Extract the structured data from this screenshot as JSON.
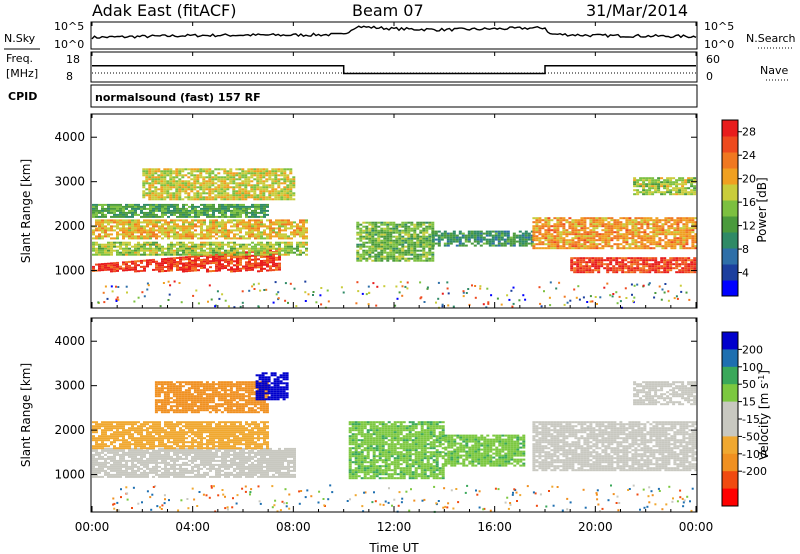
{
  "header": {
    "radar": "Adak East (fitACF)",
    "beam": "Beam 07",
    "date": "31/Mar/2014"
  },
  "panels": {
    "nsky": {
      "label": "N.Sky",
      "ticks": [
        "10^5",
        "10^0"
      ],
      "right_label": "N.Search",
      "right_ticks": [
        "10^5",
        "10^0"
      ]
    },
    "freq": {
      "label_line1": "Freq.",
      "label_line2": "[MHz]",
      "ticks": [
        "18",
        "8"
      ],
      "right_label": "Nave",
      "right_ticks": [
        "60",
        "0"
      ]
    },
    "cpid": {
      "label": "CPID",
      "program": "normalsound (fast) 157 RF"
    },
    "power": {
      "ylabel": "Slant Range [km]",
      "cbar_label": "Power [dB]"
    },
    "velocity": {
      "ylabel": "Slant Range [km]",
      "cbar_label": "Velocity [m s",
      "cbar_exp": "-1",
      "cbar_close": "]"
    }
  },
  "xaxis": {
    "label": "Time UT",
    "ticks": [
      "00:00",
      "04:00",
      "08:00",
      "12:00",
      "16:00",
      "20:00",
      "00:00"
    ]
  },
  "colors": {
    "power": [
      "#0000ff",
      "#1c3f9e",
      "#2e6fa8",
      "#2f8a66",
      "#4a9a3c",
      "#7cc040",
      "#c9cc3a",
      "#f0a020",
      "#f07820",
      "#ee4a1e",
      "#e81c1c"
    ],
    "velocity_neg": [
      "#ff0000",
      "#f04a10",
      "#f09020",
      "#f0a830"
    ],
    "velocity_zero": "#c8c8c0",
    "velocity_pos": [
      "#7cc840",
      "#3aa85a",
      "#1e6fb0",
      "#0000cc"
    ]
  },
  "chart_data": [
    {
      "type": "line",
      "title": "N.Sky / N.Search",
      "x_hours": [
        0,
        2,
        4,
        6,
        8,
        10,
        10.5,
        12,
        14,
        16,
        18,
        18.2,
        20,
        22,
        24
      ],
      "series": [
        {
          "values_log10": [
            2.2,
            2.4,
            2.6,
            2.7,
            2.7,
            2.8,
            4.5,
            4.0,
            3.8,
            4.0,
            4.2,
            2.9,
            2.6,
            2.5,
            2.4
          ]
        }
      ],
      "ylim_log10": [
        0,
        5
      ]
    },
    {
      "type": "line",
      "title": "Freq. [MHz]",
      "x_hours": [
        0,
        10,
        10,
        18,
        18,
        24
      ],
      "series": [
        {
          "values": [
            13.5,
            13.5,
            10.5,
            10.5,
            13.5,
            13.5
          ]
        }
      ],
      "ylim": [
        8,
        18
      ]
    },
    {
      "type": "heatmap",
      "title": "Power [dB]",
      "xlabel": "Time UT",
      "ylabel": "Slant Range [km]",
      "xlim_hours": [
        0,
        24
      ],
      "ylim_km": [
        180,
        4500
      ],
      "y_ticks": [
        1000,
        2000,
        3000,
        4000
      ],
      "colorbar_ticks": [
        4,
        8,
        12,
        16,
        20,
        24,
        28
      ],
      "colorbar_range": [
        0,
        30
      ],
      "bands": [
        {
          "t0": 0,
          "t1": 7.5,
          "r0": 1000,
          "r1": 1150,
          "r1_end": 1500,
          "power": 28
        },
        {
          "t0": 0,
          "t1": 8.5,
          "r0": 1350,
          "r1": 1650,
          "power": 16
        },
        {
          "t0": 0,
          "t1": 8.5,
          "r0": 1700,
          "r1": 2150,
          "power": 20
        },
        {
          "t0": 0,
          "t1": 7.0,
          "r0": 2200,
          "r1": 2500,
          "power": 12
        },
        {
          "t0": 2,
          "t1": 8.0,
          "r0": 2600,
          "r1": 3300,
          "power": 18
        },
        {
          "t0": 10.5,
          "t1": 13.5,
          "r0": 1200,
          "r1": 2100,
          "power": 14
        },
        {
          "t0": 13.5,
          "t1": 17.5,
          "r0": 1550,
          "r1": 1900,
          "power": 10
        },
        {
          "t0": 17.5,
          "t1": 24,
          "r0": 1500,
          "r1": 2200,
          "power": 22
        },
        {
          "t0": 19,
          "t1": 24,
          "r0": 950,
          "r1": 1300,
          "power": 28
        },
        {
          "t0": 21.5,
          "t1": 24,
          "r0": 2700,
          "r1": 3100,
          "power": 16
        }
      ]
    },
    {
      "type": "heatmap",
      "title": "Velocity [m s-1]",
      "xlabel": "Time UT",
      "ylabel": "Slant Range [km]",
      "xlim_hours": [
        0,
        24
      ],
      "ylim_km": [
        180,
        4500
      ],
      "y_ticks": [
        1000,
        2000,
        3000,
        4000
      ],
      "colorbar_ticks": [
        200,
        100,
        50,
        15,
        -15,
        -50,
        -100,
        -200
      ],
      "bands": [
        {
          "t0": 0,
          "t1": 8.0,
          "r0": 950,
          "r1": 1600,
          "velocity": 0
        },
        {
          "t0": 0,
          "t1": 7.0,
          "r0": 1600,
          "r1": 2200,
          "velocity": -30
        },
        {
          "t0": 2.5,
          "t1": 7.0,
          "r0": 2400,
          "r1": 3100,
          "velocity": -70
        },
        {
          "t0": 6.5,
          "t1": 7.8,
          "r0": 2700,
          "r1": 3300,
          "velocity": 200
        },
        {
          "t0": 10.2,
          "t1": 14.0,
          "r0": 900,
          "r1": 2200,
          "velocity": 40
        },
        {
          "t0": 14.0,
          "t1": 17.2,
          "r0": 1200,
          "r1": 1900,
          "velocity": 40
        },
        {
          "t0": 17.5,
          "t1": 24,
          "r0": 1100,
          "r1": 2200,
          "velocity": 0
        },
        {
          "t0": 21.5,
          "t1": 24,
          "r0": 2600,
          "r1": 3100,
          "velocity": 0
        }
      ]
    }
  ]
}
